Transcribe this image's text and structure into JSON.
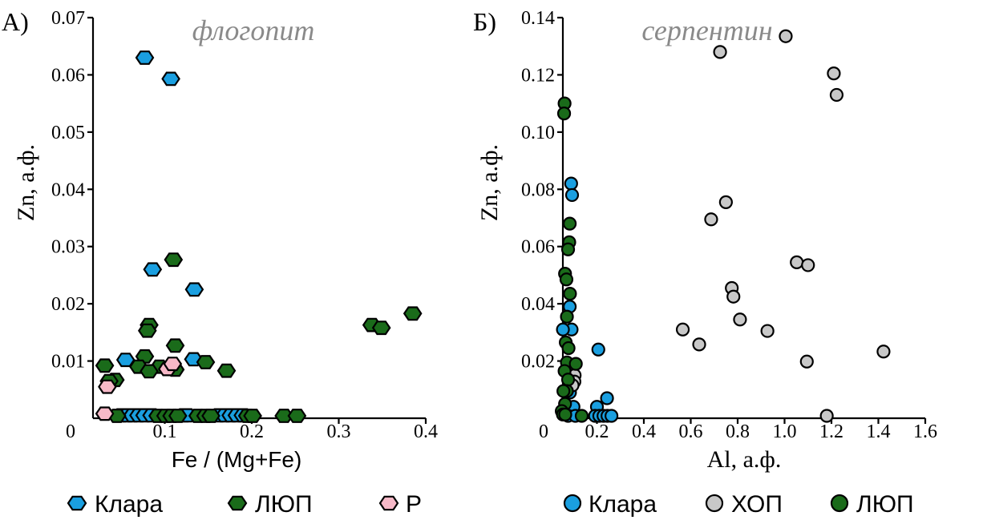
{
  "colors": {
    "klara": "#1a9fe0",
    "lyup": "#1a6b1a",
    "r": "#f7b9c8",
    "hop": "#c8c8c8"
  },
  "chart_data": [
    {
      "type": "scatter",
      "panel_label": "А)",
      "mineral": "флогопит",
      "xlabel": "Fe / (Mg+Fe)",
      "ylabel": "Zn, а.ф.",
      "xlim": [
        0,
        0.4
      ],
      "ylim": [
        0,
        0.07
      ],
      "x_ticks": [
        "0",
        "0.1",
        "0.2",
        "0.3",
        "0.4"
      ],
      "y_ticks": [
        "0.01",
        "0.02",
        "0.03",
        "0.04",
        "0.05",
        "0.06",
        "0.07"
      ],
      "marker": "hexagon",
      "legend_placement": "bottom",
      "series": [
        {
          "name": "Клара",
          "color": "#1a9fe0",
          "points": [
            [
              0.077,
              0.063
            ],
            [
              0.107,
              0.0593
            ],
            [
              0.086,
              0.026
            ],
            [
              0.134,
              0.0225
            ],
            [
              0.055,
              0.0102
            ],
            [
              0.133,
              0.0103
            ],
            [
              0.05,
              0.0005
            ],
            [
              0.057,
              0.0005
            ],
            [
              0.063,
              0.0005
            ],
            [
              0.07,
              0.0005
            ],
            [
              0.077,
              0.0005
            ],
            [
              0.085,
              0.0005
            ],
            [
              0.122,
              0.0005
            ],
            [
              0.126,
              0.0005
            ],
            [
              0.162,
              0.0005
            ],
            [
              0.169,
              0.0005
            ],
            [
              0.176,
              0.0005
            ],
            [
              0.183,
              0.0005
            ],
            [
              0.19,
              0.0005
            ]
          ]
        },
        {
          "name": "ЛЮП",
          "color": "#1a6b1a",
          "points": [
            [
              0.11,
              0.0277
            ],
            [
              0.082,
              0.0163
            ],
            [
              0.08,
              0.0153
            ],
            [
              0.385,
              0.0183
            ],
            [
              0.338,
              0.0163
            ],
            [
              0.349,
              0.0158
            ],
            [
              0.112,
              0.0127
            ],
            [
              0.077,
              0.0108
            ],
            [
              0.147,
              0.0098
            ],
            [
              0.07,
              0.009
            ],
            [
              0.094,
              0.009
            ],
            [
              0.031,
              0.0092
            ],
            [
              0.112,
              0.0085
            ],
            [
              0.171,
              0.0083
            ],
            [
              0.082,
              0.0082
            ],
            [
              0.043,
              0.0067
            ],
            [
              0.036,
              0.0065
            ],
            [
              0.045,
              0.0003
            ],
            [
              0.092,
              0.0003
            ],
            [
              0.101,
              0.0003
            ],
            [
              0.108,
              0.0003
            ],
            [
              0.115,
              0.0003
            ],
            [
              0.138,
              0.0003
            ],
            [
              0.147,
              0.0003
            ],
            [
              0.153,
              0.0003
            ],
            [
              0.195,
              0.0003
            ],
            [
              0.201,
              0.0003
            ],
            [
              0.237,
              0.0003
            ],
            [
              0.252,
              0.0003
            ]
          ]
        },
        {
          "name": "Р",
          "color": "#f7b9c8",
          "points": [
            [
              0.034,
              0.0055
            ],
            [
              0.103,
              0.0086
            ],
            [
              0.109,
              0.0095
            ],
            [
              0.031,
              0.0008
            ]
          ]
        }
      ]
    },
    {
      "type": "scatter",
      "panel_label": "Б)",
      "mineral": "серпентин",
      "xlabel": "Al, а.ф.",
      "ylabel": "Zn, а.ф.",
      "xlim": [
        0,
        1.6
      ],
      "ylim": [
        0,
        0.14
      ],
      "x_ticks": [
        "0",
        "0.2",
        "0.4",
        "0.6",
        "0.8",
        "1.0",
        "1.2",
        "1.4",
        "1.6"
      ],
      "y_ticks": [
        "0.02",
        "0.04",
        "0.06",
        "0.08",
        "0.10",
        "0.12",
        "0.14"
      ],
      "marker": "circle",
      "legend_placement": "bottom",
      "series": [
        {
          "name": "Клара",
          "color": "#1a9fe0",
          "points": [
            [
              0.09,
              0.082
            ],
            [
              0.094,
              0.078
            ],
            [
              0.084,
              0.039
            ],
            [
              0.092,
              0.031
            ],
            [
              0.055,
              0.031
            ],
            [
              0.206,
              0.024
            ],
            [
              0.078,
              0.015
            ],
            [
              0.085,
              0.009
            ],
            [
              0.1,
              0.004
            ],
            [
              0.2,
              0.004
            ],
            [
              0.243,
              0.007
            ],
            [
              0.077,
              0.0
            ],
            [
              0.108,
              0.0
            ],
            [
              0.192,
              0.0
            ],
            [
              0.21,
              0.0
            ],
            [
              0.228,
              0.0
            ],
            [
              0.245,
              0.0
            ],
            [
              0.262,
              0.0
            ]
          ]
        },
        {
          "name": "ХОП",
          "color": "#c8c8c8",
          "points": [
            [
              1.005,
              0.1335
            ],
            [
              0.725,
              0.128
            ],
            [
              1.21,
              0.1205
            ],
            [
              1.222,
              0.113
            ],
            [
              0.75,
              0.0755
            ],
            [
              0.687,
              0.0695
            ],
            [
              1.052,
              0.0545
            ],
            [
              1.1,
              0.0535
            ],
            [
              0.775,
              0.0455
            ],
            [
              0.782,
              0.0425
            ],
            [
              0.81,
              0.0345
            ],
            [
              0.566,
              0.031
            ],
            [
              0.927,
              0.0305
            ],
            [
              0.636,
              0.0258
            ],
            [
              1.422,
              0.0233
            ],
            [
              1.095,
              0.0198
            ],
            [
              1.18,
              0.0003
            ],
            [
              0.105,
              0.015
            ],
            [
              0.104,
              0.0128
            ],
            [
              0.096,
              0.0115
            ]
          ]
        },
        {
          "name": "ЛЮП",
          "color": "#1a6b1a",
          "points": [
            [
              0.062,
              0.11
            ],
            [
              0.06,
              0.1065
            ],
            [
              0.084,
              0.068
            ],
            [
              0.082,
              0.0615
            ],
            [
              0.077,
              0.059
            ],
            [
              0.064,
              0.0505
            ],
            [
              0.07,
              0.0485
            ],
            [
              0.085,
              0.0435
            ],
            [
              0.072,
              0.0355
            ],
            [
              0.067,
              0.0265
            ],
            [
              0.079,
              0.0245
            ],
            [
              0.072,
              0.0195
            ],
            [
              0.11,
              0.019
            ],
            [
              0.062,
              0.0165
            ],
            [
              0.077,
              0.0135
            ],
            [
              0.072,
              0.0095
            ],
            [
              0.057,
              0.0095
            ],
            [
              0.064,
              0.005
            ],
            [
              0.05,
              0.0025
            ],
            [
              0.055,
              0.0013
            ],
            [
              0.065,
              0.0013
            ],
            [
              0.135,
              0.0003
            ]
          ]
        }
      ]
    }
  ]
}
